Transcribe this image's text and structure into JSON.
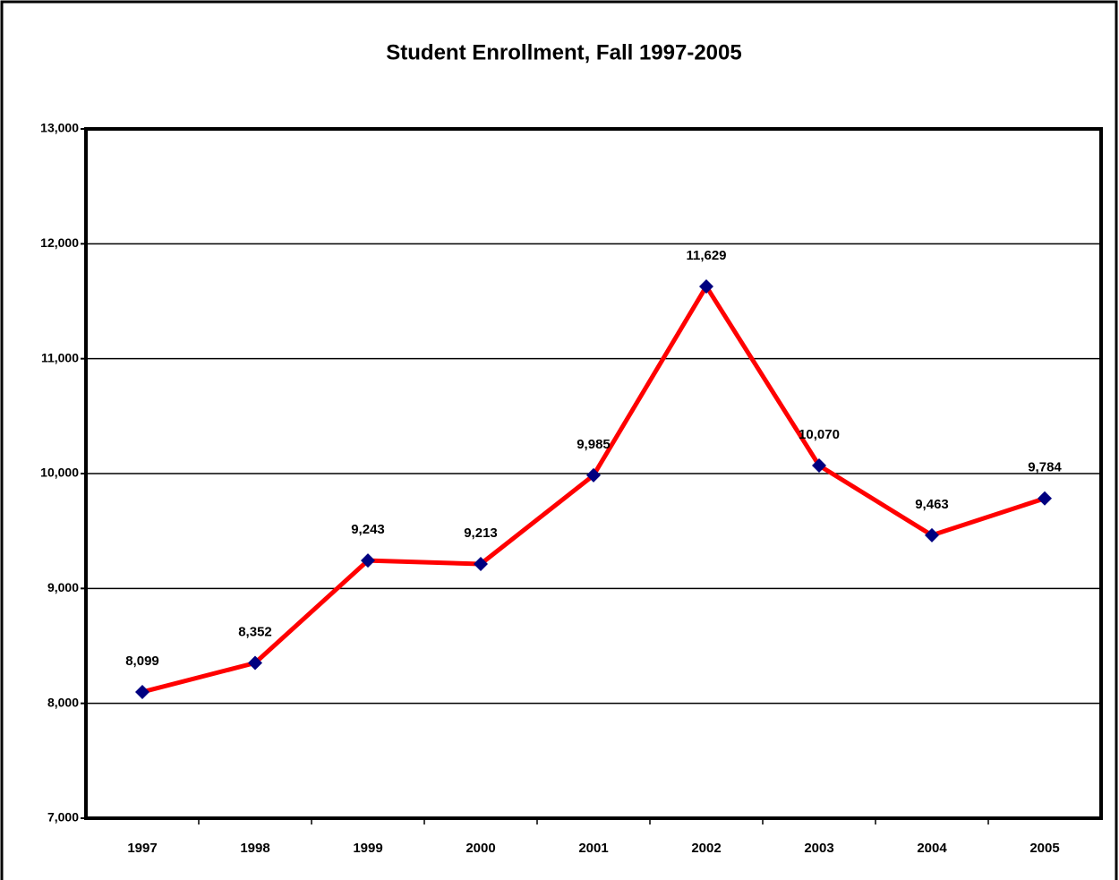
{
  "chart_data": {
    "type": "line",
    "title": "Student Enrollment, Fall 1997-2005",
    "categories": [
      "1997",
      "1998",
      "1999",
      "2000",
      "2001",
      "2002",
      "2003",
      "2004",
      "2005"
    ],
    "values": [
      8099,
      8352,
      9243,
      9213,
      9985,
      11629,
      10070,
      9463,
      9784
    ],
    "value_labels": [
      "8,099",
      "8,352",
      "9,243",
      "9,213",
      "9,985",
      "11,629",
      "10,070",
      "9,463",
      "9,784"
    ],
    "color": "#ff0000",
    "marker_color": "#000080",
    "ylim": [
      7000,
      13000
    ],
    "yticks": [
      {
        "value": 7000,
        "label": "7,000"
      },
      {
        "value": 8000,
        "label": "8,000"
      },
      {
        "value": 9000,
        "label": "9,000"
      },
      {
        "value": 10000,
        "label": "10,000"
      },
      {
        "value": 11000,
        "label": "11,000"
      },
      {
        "value": 12000,
        "label": "12,000"
      },
      {
        "value": 13000,
        "label": "13,000"
      }
    ],
    "grid": true
  }
}
